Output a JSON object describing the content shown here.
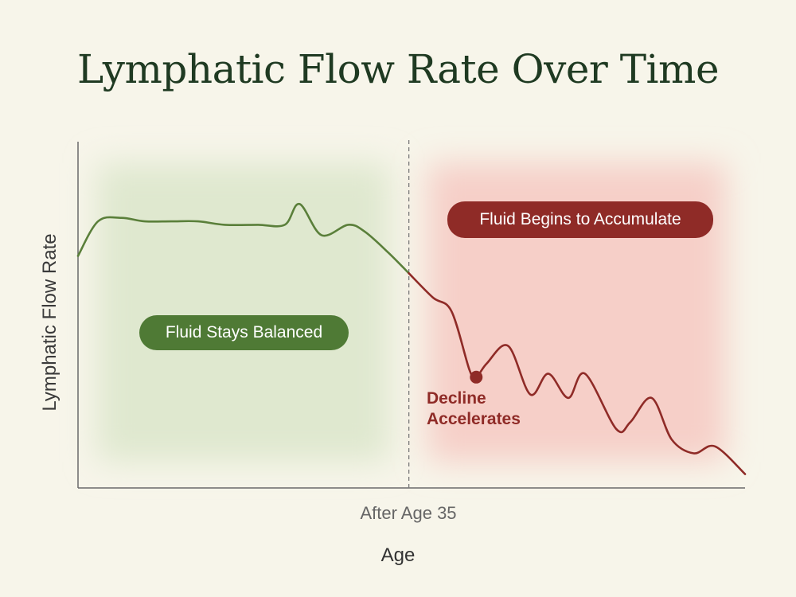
{
  "title": "Lymphatic Flow Rate Over Time",
  "chart_data": {
    "type": "line",
    "title": "Lymphatic Flow Rate Over Time",
    "xlabel": "Age",
    "ylabel": "Lymphatic Flow Rate",
    "x_ticks": [
      "After Age 35"
    ],
    "xlim": [
      0,
      100
    ],
    "ylim": [
      0,
      100
    ],
    "grid": false,
    "divider": {
      "x": 49.6,
      "label": "After Age 35"
    },
    "regions": [
      {
        "name": "balanced",
        "label": "Fluid Stays Balanced",
        "x_range": [
          0,
          49.6
        ],
        "color": "#dfe8cf"
      },
      {
        "name": "accumulate",
        "label": "Fluid Begins to Accumulate",
        "x_range": [
          49.6,
          100
        ],
        "color": "#f6cfc8"
      }
    ],
    "series": [
      {
        "color": "#5a7f3a",
        "x": [
          0,
          3,
          6.5,
          10,
          14,
          18,
          22,
          27,
          31,
          33.2,
          36.5,
          40.5,
          43,
          46.5,
          49.6
        ],
        "y": [
          67,
          77,
          78,
          77,
          77,
          77,
          76,
          76,
          76,
          82,
          73,
          76,
          74,
          68,
          62
        ]
      },
      {
        "color": "#8f2b27",
        "x": [
          49.6,
          53.2,
          56,
          58.7,
          59.7,
          61.3,
          64.5,
          67.8,
          70.5,
          73.5,
          76,
          80.7,
          82.8,
          86,
          89,
          92.3,
          95.5,
          100
        ],
        "y": [
          62,
          55,
          51,
          34,
          32,
          36,
          41,
          27,
          33,
          26,
          33,
          17,
          19,
          26,
          14,
          10,
          12,
          4
        ]
      }
    ],
    "annotations": [
      {
        "text_1": "Decline",
        "text_2": "Accelerates",
        "x": 59.7,
        "y": 32
      }
    ]
  },
  "colors": {
    "background": "#f7f5ea",
    "green": "#5a7f3a",
    "red": "#8f2b27",
    "axis": "#6a6a6a"
  }
}
